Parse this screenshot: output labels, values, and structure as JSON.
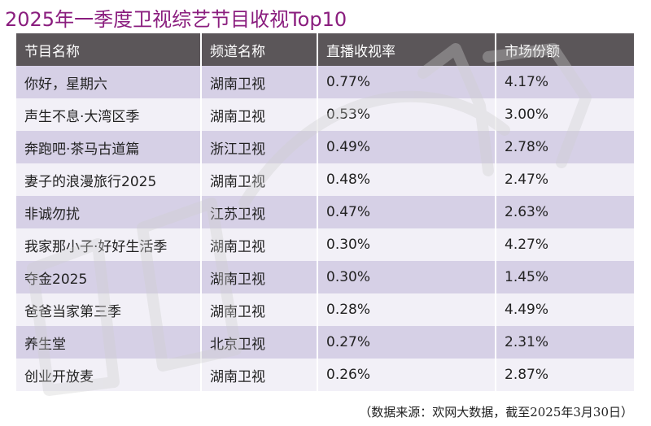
{
  "title": "2025年一季度卫视综艺节目收视Top10",
  "source_note": "（数据来源：欢网大数据，截至2025年3月30日）",
  "colors": {
    "title": "#8a1d7e",
    "header_bg": "#5b5659",
    "row_dark": "#d6d0e6",
    "row_light": "#f2f0f7"
  },
  "chart_data": {
    "type": "table",
    "title": "2025年一季度卫视综艺节目收视Top10",
    "columns": [
      "节目名称",
      "频道名称",
      "直播收视率",
      "市场份额"
    ],
    "rows": [
      [
        "你好，星期六",
        "湖南卫视",
        "0.77%",
        "4.17%"
      ],
      [
        "声生不息·大湾区季",
        "湖南卫视",
        "0.53%",
        "3.00%"
      ],
      [
        "奔跑吧·茶马古道篇",
        "浙江卫视",
        "0.49%",
        "2.78%"
      ],
      [
        "妻子的浪漫旅行2025",
        "湖南卫视",
        "0.48%",
        "2.47%"
      ],
      [
        "非诚勿扰",
        "江苏卫视",
        "0.47%",
        "2.63%"
      ],
      [
        "我家那小子·好好生活季",
        "湖南卫视",
        "0.30%",
        "4.27%"
      ],
      [
        "夺金2025",
        "湖南卫视",
        "0.30%",
        "1.45%"
      ],
      [
        "爸爸当家第三季",
        "湖南卫视",
        "0.28%",
        "4.49%"
      ],
      [
        "养生堂",
        "北京卫视",
        "0.27%",
        "2.31%"
      ],
      [
        "创业开放麦",
        "湖南卫视",
        "0.26%",
        "2.87%"
      ]
    ]
  }
}
